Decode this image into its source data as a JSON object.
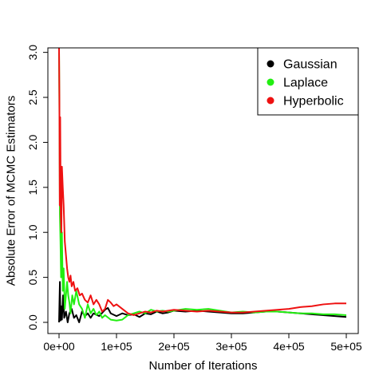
{
  "chart_data": {
    "type": "line",
    "xlabel": "Number of Iterations",
    "ylabel": "Absolute Error of MCMC Estimators",
    "xlim": [
      0,
      500000
    ],
    "ylim": [
      0,
      3.05
    ],
    "x_ticks": [
      0,
      100000,
      200000,
      300000,
      400000,
      500000
    ],
    "x_tick_labels": [
      "0e+00",
      "1e+05",
      "2e+05",
      "3e+05",
      "4e+05",
      "5e+05"
    ],
    "y_ticks": [
      0.0,
      0.5,
      1.0,
      1.5,
      2.0,
      2.5,
      3.0
    ],
    "y_tick_labels": [
      "0.0",
      "0.5",
      "1.0",
      "1.5",
      "2.0",
      "2.5",
      "3.0"
    ],
    "legend_position": "top-right",
    "grid": false,
    "series": [
      {
        "name": "Gaussian",
        "color": "#000000",
        "x": [
          0,
          1500,
          2500,
          3500,
          5000,
          7000,
          9000,
          12000,
          15000,
          18000,
          22000,
          26000,
          30000,
          35000,
          40000,
          45000,
          50000,
          55000,
          60000,
          70000,
          80000,
          85000,
          90000,
          100000,
          110000,
          120000,
          130000,
          140000,
          150000,
          160000,
          170000,
          180000,
          190000,
          200000,
          220000,
          240000,
          260000,
          280000,
          300000,
          320000,
          340000,
          360000,
          380000,
          400000,
          420000,
          440000,
          460000,
          480000,
          500000
        ],
        "values": [
          0.0,
          0.45,
          0.02,
          0.18,
          0.03,
          0.3,
          0.05,
          0.12,
          0.0,
          0.1,
          0.15,
          0.05,
          0.08,
          0.0,
          0.12,
          0.07,
          0.1,
          0.05,
          0.1,
          0.07,
          0.14,
          0.16,
          0.1,
          0.07,
          0.1,
          0.08,
          0.09,
          0.06,
          0.1,
          0.09,
          0.12,
          0.1,
          0.11,
          0.13,
          0.12,
          0.13,
          0.12,
          0.11,
          0.1,
          0.1,
          0.11,
          0.12,
          0.12,
          0.11,
          0.1,
          0.09,
          0.08,
          0.07,
          0.06
        ]
      },
      {
        "name": "Laplace",
        "color": "#22ee11",
        "x": [
          0,
          800,
          1500,
          2500,
          3500,
          5000,
          6500,
          8000,
          10000,
          12000,
          14000,
          16000,
          18000,
          20000,
          23000,
          26000,
          30000,
          35000,
          40000,
          45000,
          50000,
          55000,
          60000,
          65000,
          70000,
          75000,
          80000,
          90000,
          100000,
          110000,
          120000,
          130000,
          140000,
          150000,
          160000,
          170000,
          180000,
          190000,
          200000,
          220000,
          240000,
          260000,
          280000,
          300000,
          320000,
          340000,
          360000,
          380000,
          400000,
          420000,
          440000,
          460000,
          480000,
          500000
        ],
        "values": [
          3.0,
          2.2,
          1.2,
          0.9,
          0.5,
          1.0,
          0.35,
          0.6,
          0.15,
          0.3,
          0.45,
          0.3,
          0.22,
          0.1,
          0.3,
          0.2,
          0.35,
          0.2,
          0.15,
          0.05,
          0.2,
          0.1,
          0.15,
          0.08,
          0.12,
          0.05,
          0.08,
          0.03,
          0.02,
          0.03,
          0.08,
          0.1,
          0.12,
          0.1,
          0.14,
          0.12,
          0.13,
          0.12,
          0.13,
          0.15,
          0.14,
          0.15,
          0.13,
          0.11,
          0.12,
          0.11,
          0.12,
          0.12,
          0.11,
          0.1,
          0.1,
          0.09,
          0.09,
          0.08
        ]
      },
      {
        "name": "Hyperbolic",
        "color": "#ee1111",
        "x": [
          0,
          600,
          1200,
          2000,
          3000,
          4000,
          5000,
          6500,
          8000,
          10000,
          12000,
          14000,
          16000,
          18000,
          20000,
          22000,
          25000,
          28000,
          32000,
          36000,
          40000,
          45000,
          50000,
          55000,
          60000,
          65000,
          70000,
          75000,
          80000,
          85000,
          90000,
          95000,
          100000,
          110000,
          120000,
          130000,
          140000,
          150000,
          160000,
          170000,
          180000,
          190000,
          200000,
          220000,
          240000,
          260000,
          280000,
          300000,
          320000,
          340000,
          360000,
          380000,
          400000,
          420000,
          440000,
          460000,
          480000,
          500000
        ],
        "values": [
          3.05,
          2.5,
          1.3,
          2.28,
          1.2,
          1.0,
          1.73,
          1.5,
          1.3,
          0.9,
          0.75,
          0.6,
          0.5,
          0.45,
          0.52,
          0.4,
          0.45,
          0.35,
          0.38,
          0.3,
          0.32,
          0.25,
          0.22,
          0.3,
          0.2,
          0.25,
          0.2,
          0.12,
          0.15,
          0.25,
          0.22,
          0.18,
          0.2,
          0.15,
          0.1,
          0.08,
          0.1,
          0.12,
          0.11,
          0.13,
          0.12,
          0.13,
          0.14,
          0.13,
          0.12,
          0.13,
          0.12,
          0.11,
          0.11,
          0.12,
          0.13,
          0.14,
          0.15,
          0.17,
          0.18,
          0.2,
          0.21,
          0.21
        ]
      }
    ]
  }
}
